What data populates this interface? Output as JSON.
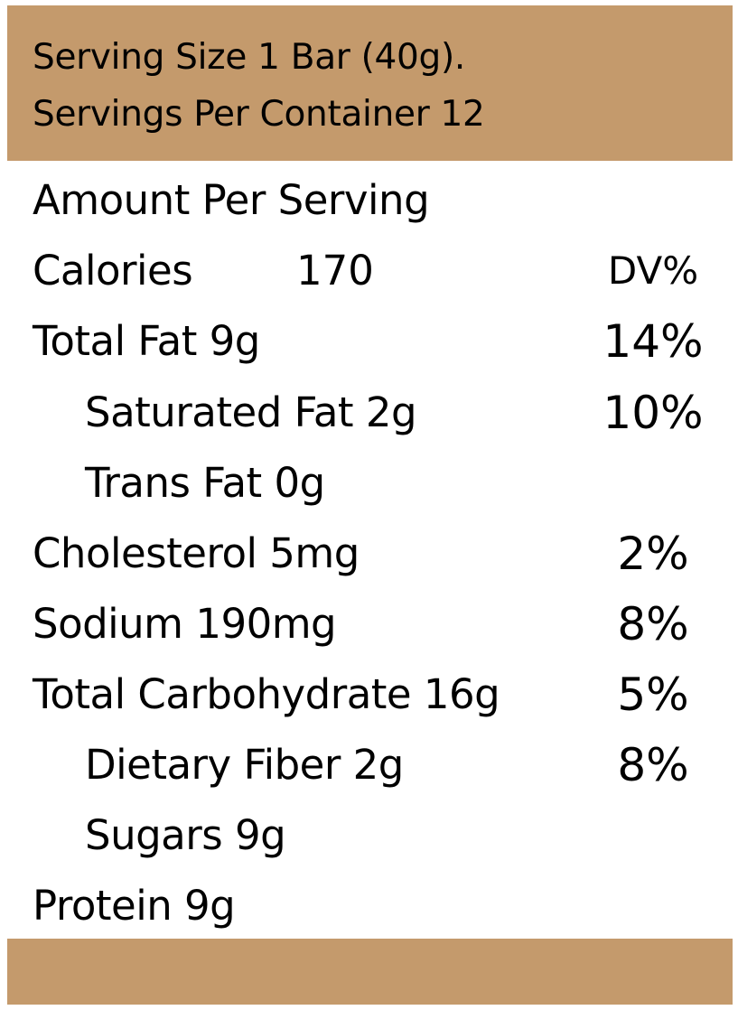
{
  "header": {
    "serving_size": "Serving Size 1 Bar  (40g).",
    "servings_per_container": "Servings Per Container 12"
  },
  "amount_per_serving": "Amount Per Serving",
  "calories": {
    "label": "Calories",
    "value": "170",
    "dv_header": "DV%"
  },
  "nutrients": [
    {
      "label": "Total Fat 9g",
      "dv": "14%"
    },
    {
      "label": "Saturated Fat 2g",
      "dv": "10%"
    },
    {
      "label": "Trans  Fat 0g",
      "dv": ""
    },
    {
      "label": "Cholesterol 5mg",
      "dv": "2%"
    },
    {
      "label": "Sodium  190mg",
      "dv": "8%"
    },
    {
      "label": "Total Carbohydrate  16g",
      "dv": "5%"
    },
    {
      "label": "Dietary Fiber 2g",
      "dv": "8%"
    },
    {
      "label": "Sugars 9g",
      "dv": ""
    },
    {
      "label": "Protein 9g",
      "dv": ""
    }
  ],
  "colors": {
    "band": "#c49a6c",
    "text": "#000000",
    "background": "#ffffff"
  }
}
